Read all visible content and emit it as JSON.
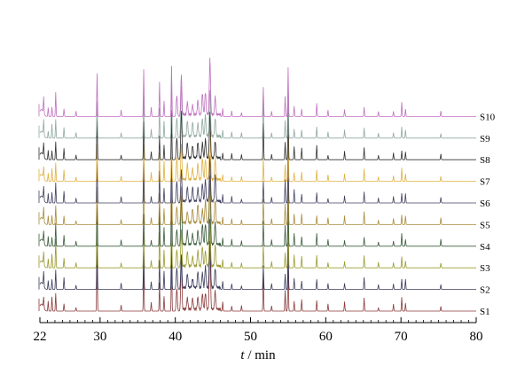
{
  "chart_data": {
    "type": "line",
    "title": "",
    "xlabel_italic": "t",
    "xlabel_rest": " / min",
    "xlim": [
      22,
      80
    ],
    "xticks": [
      22,
      30,
      40,
      50,
      60,
      70,
      80
    ],
    "grid": false,
    "legend": "sample labels at right end of each trace",
    "series": [
      {
        "name": "S1",
        "color": "#8a3a3a"
      },
      {
        "name": "S2",
        "color": "#3a3a5a"
      },
      {
        "name": "S3",
        "color": "#9a9a30"
      },
      {
        "name": "S4",
        "color": "#3a5a3a"
      },
      {
        "name": "S5",
        "color": "#a88a3a"
      },
      {
        "name": "S6",
        "color": "#404060"
      },
      {
        "name": "S7",
        "color": "#e0b040"
      },
      {
        "name": "S8",
        "color": "#303030"
      },
      {
        "name": "S9",
        "color": "#90a8a0"
      },
      {
        "name": "S10",
        "color": "#c070c0"
      }
    ],
    "peaks": [
      {
        "x": 22.5,
        "h": 0.35
      },
      {
        "x": 23.1,
        "h": 0.22
      },
      {
        "x": 23.6,
        "h": 0.3
      },
      {
        "x": 24.1,
        "h": 0.6
      },
      {
        "x": 25.2,
        "h": 0.25
      },
      {
        "x": 26.8,
        "h": 0.12
      },
      {
        "x": 29.6,
        "h": 1.2
      },
      {
        "x": 32.8,
        "h": 0.15
      },
      {
        "x": 35.8,
        "h": 1.0
      },
      {
        "x": 36.8,
        "h": 0.2
      },
      {
        "x": 37.9,
        "h": 0.8
      },
      {
        "x": 38.5,
        "h": 0.45
      },
      {
        "x": 39.5,
        "h": 1.6
      },
      {
        "x": 40.2,
        "h": 0.5
      },
      {
        "x": 40.8,
        "h": 1.1
      },
      {
        "x": 41.6,
        "h": 0.35
      },
      {
        "x": 42.3,
        "h": 0.3
      },
      {
        "x": 43.0,
        "h": 0.4
      },
      {
        "x": 43.6,
        "h": 0.45
      },
      {
        "x": 44.0,
        "h": 0.5
      },
      {
        "x": 44.6,
        "h": 1.45
      },
      {
        "x": 45.3,
        "h": 0.55
      },
      {
        "x": 46.3,
        "h": 0.2
      },
      {
        "x": 47.5,
        "h": 0.15
      },
      {
        "x": 48.8,
        "h": 0.12
      },
      {
        "x": 51.7,
        "h": 0.75
      },
      {
        "x": 52.8,
        "h": 0.15
      },
      {
        "x": 54.6,
        "h": 0.5
      },
      {
        "x": 55.0,
        "h": 1.45
      },
      {
        "x": 55.8,
        "h": 0.3
      },
      {
        "x": 56.8,
        "h": 0.25
      },
      {
        "x": 58.8,
        "h": 0.3
      },
      {
        "x": 60.3,
        "h": 0.15
      },
      {
        "x": 62.5,
        "h": 0.2
      },
      {
        "x": 65.1,
        "h": 0.28
      },
      {
        "x": 67.0,
        "h": 0.12
      },
      {
        "x": 69.0,
        "h": 0.15
      },
      {
        "x": 70.1,
        "h": 0.3
      },
      {
        "x": 70.6,
        "h": 0.22
      },
      {
        "x": 75.3,
        "h": 0.15
      }
    ]
  }
}
